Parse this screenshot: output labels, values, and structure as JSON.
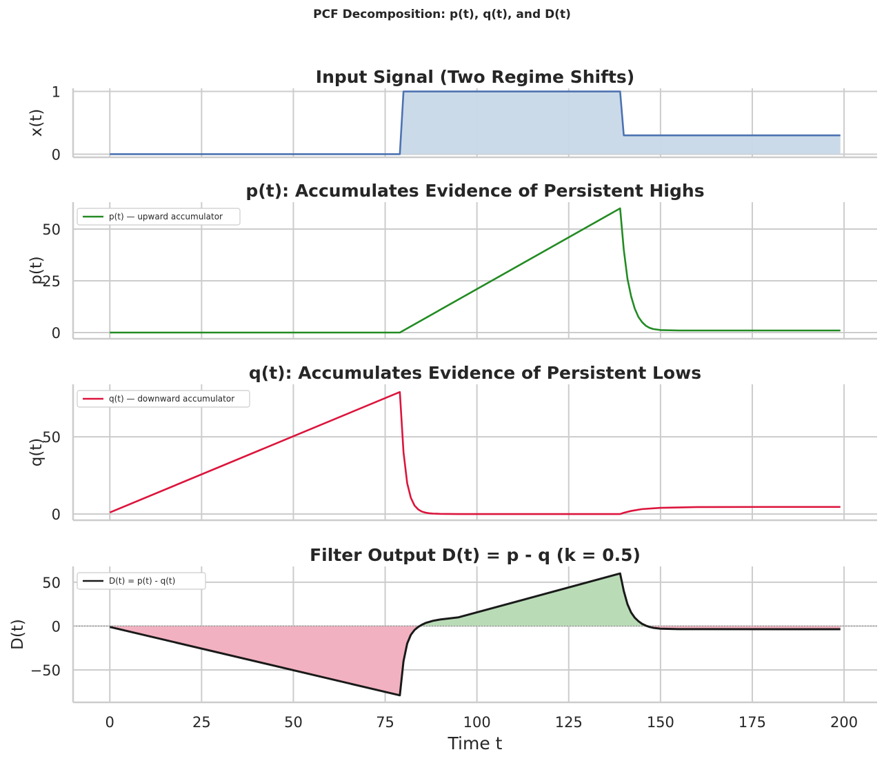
{
  "figure": {
    "suptitle": "PCF Decomposition: p(t), q(t), and D(t)",
    "xlabel": "Time t"
  },
  "chart_data": [
    {
      "type": "line",
      "title": "Input Signal (Two Regime Shifts)",
      "xlabel": "",
      "ylabel": "x(t)",
      "xlim": [
        -10,
        209
      ],
      "ylim": [
        -0.05,
        1.05
      ],
      "xticks": [
        0,
        25,
        50,
        75,
        100,
        125,
        150,
        175,
        200
      ],
      "yticks": [
        0,
        1
      ],
      "ytick_labels": [
        "0",
        "1"
      ],
      "grid": true,
      "fill": "to_zero",
      "legend": null,
      "series": [
        {
          "color": "#4c72b0",
          "fill_color": "#c8d8e8",
          "x": [
            0,
            79,
            80,
            139,
            140,
            199
          ],
          "y": [
            0,
            0,
            1,
            1,
            0.3,
            0.3
          ]
        }
      ]
    },
    {
      "type": "line",
      "title": "p(t): Accumulates Evidence of Persistent Highs",
      "xlabel": "",
      "ylabel": "p(t)",
      "xlim": [
        -10,
        209
      ],
      "ylim": [
        -3,
        63
      ],
      "xticks": [
        0,
        25,
        50,
        75,
        100,
        125,
        150,
        175,
        200
      ],
      "yticks": [
        0,
        25,
        50
      ],
      "ytick_labels": [
        "0",
        "25",
        "50"
      ],
      "grid": true,
      "legend": "upper left",
      "series": [
        {
          "name": "p(t) — upward accumulator",
          "color": "#228b22",
          "x": [
            0,
            79,
            139,
            140,
            141,
            142,
            143,
            144,
            145,
            146,
            147,
            148,
            150,
            155,
            160,
            199
          ],
          "y": [
            0,
            0,
            60,
            40,
            26,
            17.5,
            11.5,
            7.5,
            5,
            3.3,
            2.3,
            1.7,
            1.2,
            1,
            1,
            1
          ]
        }
      ]
    },
    {
      "type": "line",
      "title": "q(t): Accumulates Evidence of Persistent Lows",
      "xlabel": "",
      "ylabel": "q(t)",
      "xlim": [
        -10,
        209
      ],
      "ylim": [
        -4,
        84
      ],
      "xticks": [
        0,
        25,
        50,
        75,
        100,
        125,
        150,
        175,
        200
      ],
      "yticks": [
        0,
        50
      ],
      "ytick_labels": [
        "0",
        "50"
      ],
      "grid": true,
      "legend": "upper left",
      "series": [
        {
          "name": "q(t) — downward accumulator",
          "color": "#dc143c",
          "x": [
            0,
            79,
            80,
            81,
            82,
            83,
            84,
            85,
            86,
            87,
            88,
            90,
            95,
            139,
            140,
            142,
            145,
            150,
            160,
            180,
            199
          ],
          "y": [
            1,
            79,
            40,
            20,
            10.5,
            5.5,
            3,
            1.6,
            0.9,
            0.5,
            0.3,
            0.1,
            0,
            0,
            0.8,
            2,
            3.2,
            4,
            4.5,
            4.6,
            4.6
          ]
        }
      ]
    },
    {
      "type": "area",
      "title": "Filter Output D(t) = p - q  (k = 0.5)",
      "xlabel": "Time t",
      "ylabel": "D(t)",
      "xlim": [
        -10,
        209
      ],
      "ylim": [
        -87,
        68
      ],
      "xticks": [
        0,
        25,
        50,
        75,
        100,
        125,
        150,
        175,
        200
      ],
      "xtick_labels": [
        "0",
        "25",
        "50",
        "75",
        "100",
        "125",
        "150",
        "175",
        "200"
      ],
      "yticks": [
        -50,
        0,
        50
      ],
      "ytick_labels": [
        "−50",
        "0",
        "50"
      ],
      "grid": true,
      "zero_line": true,
      "legend": "upper left",
      "fill_positive_color": "#b9dcb6",
      "fill_negative_color": "#f2b1c0",
      "series": [
        {
          "name": "D(t) = p(t) - q(t)",
          "color": "#1a1a1a",
          "x": [
            0,
            79,
            80,
            81,
            82,
            83,
            84,
            85,
            86,
            88,
            90,
            95,
            139,
            140,
            141,
            142,
            143,
            144,
            145,
            146,
            147,
            148,
            150,
            155,
            199
          ],
          "y": [
            -1,
            -79,
            -40,
            -20,
            -10,
            -4.5,
            -1,
            1.5,
            3.5,
            6,
            7.5,
            10,
            60,
            40,
            25,
            15.5,
            9.5,
            5.5,
            2.5,
            0.5,
            -1,
            -2,
            -3,
            -3.5,
            -3.6
          ]
        }
      ]
    }
  ]
}
